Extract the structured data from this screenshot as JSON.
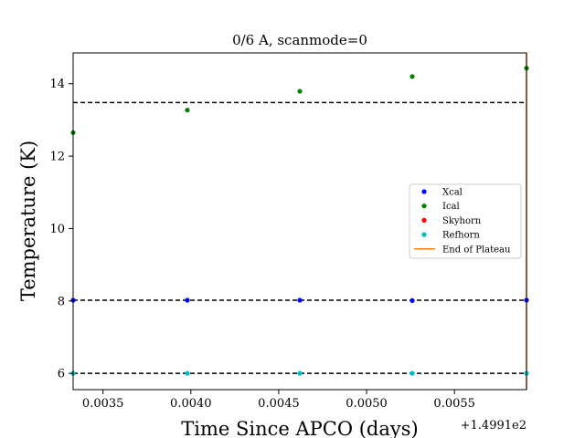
{
  "chart_data": {
    "type": "scatter",
    "title": "0/6 A, scanmode=0",
    "xlabel": "Time Since APCO (days)",
    "ylabel": "Temperature (K)",
    "x_offset_label": "+1.4991e2",
    "xlim": [
      0.00333,
      0.00591
    ],
    "ylim": [
      5.55,
      14.85
    ],
    "xticks": [
      0.0035,
      0.004,
      0.0045,
      0.005,
      0.0055
    ],
    "xtick_labels": [
      "0.0035",
      "0.0040",
      "0.0045",
      "0.0050",
      "0.0055"
    ],
    "yticks": [
      6,
      8,
      10,
      12,
      14
    ],
    "ytick_labels": [
      "6",
      "8",
      "10",
      "12",
      "14"
    ],
    "grid": false,
    "legend_position": "center-right",
    "series": [
      {
        "name": "Xcal",
        "color": "#0000ff",
        "x": [
          0.00333,
          0.00398,
          0.00462,
          0.00526,
          0.00591
        ],
        "y": [
          8.02,
          8.02,
          8.02,
          8.01,
          8.02
        ]
      },
      {
        "name": "Ical",
        "color": "#008000",
        "x": [
          0.00333,
          0.00398,
          0.00462,
          0.00526,
          0.00591
        ],
        "y": [
          12.65,
          13.27,
          13.79,
          14.2,
          14.43
        ]
      },
      {
        "name": "Skyhorn",
        "color": "#ff0000",
        "x": [],
        "y": []
      },
      {
        "name": "Refhorn",
        "color": "#00bfbf",
        "x": [
          0.00333,
          0.00398,
          0.00462,
          0.00526,
          0.00591
        ],
        "y": [
          6.0,
          6.0,
          6.0,
          6.0,
          6.0
        ]
      }
    ],
    "hlines": [
      {
        "y": 13.48,
        "style": "dashed",
        "color": "#000000"
      },
      {
        "y": 8.02,
        "style": "dashed",
        "color": "#000000"
      },
      {
        "y": 6.0,
        "style": "dashed",
        "color": "#000000"
      }
    ],
    "vlines": [
      {
        "name": "End of Plateau",
        "x": 0.00591,
        "color": "#ff7f0e"
      }
    ]
  }
}
